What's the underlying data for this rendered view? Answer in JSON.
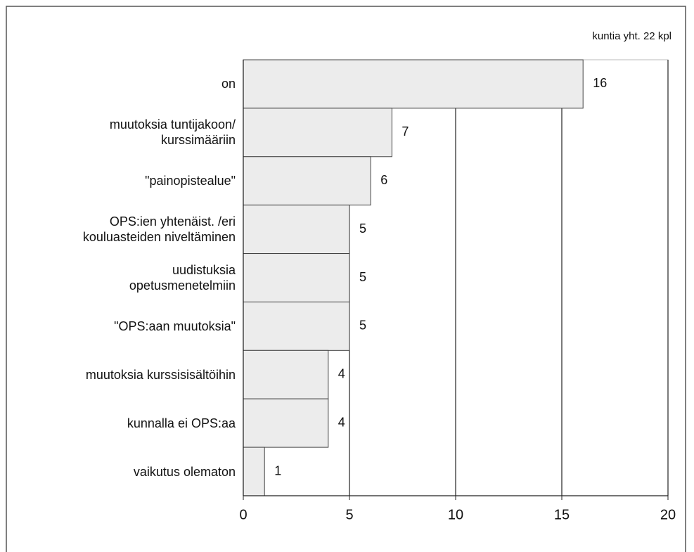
{
  "chart_data": {
    "type": "hbar",
    "note": "kuntia yht. 22 kpl",
    "categories": [
      "on",
      "muutoksia tuntijakoon/\nkurssimääriin",
      "\"painopistealue\"",
      "OPS:ien yhtenäist. /eri\nkouluasteiden niveltäminen",
      "uudistuksia\nopetusmenetelmiin",
      "\"OPS:aan muutoksia\"",
      "muutoksia kurssisisältöihin",
      "kunnalla ei OPS:aa",
      "vaikutus olematon"
    ],
    "values": [
      16,
      7,
      6,
      5,
      5,
      5,
      4,
      4,
      1
    ],
    "color": "#ececec",
    "xlim": [
      0,
      20
    ],
    "xticks": [
      0,
      5,
      10,
      15,
      20
    ],
    "grid": true
  }
}
